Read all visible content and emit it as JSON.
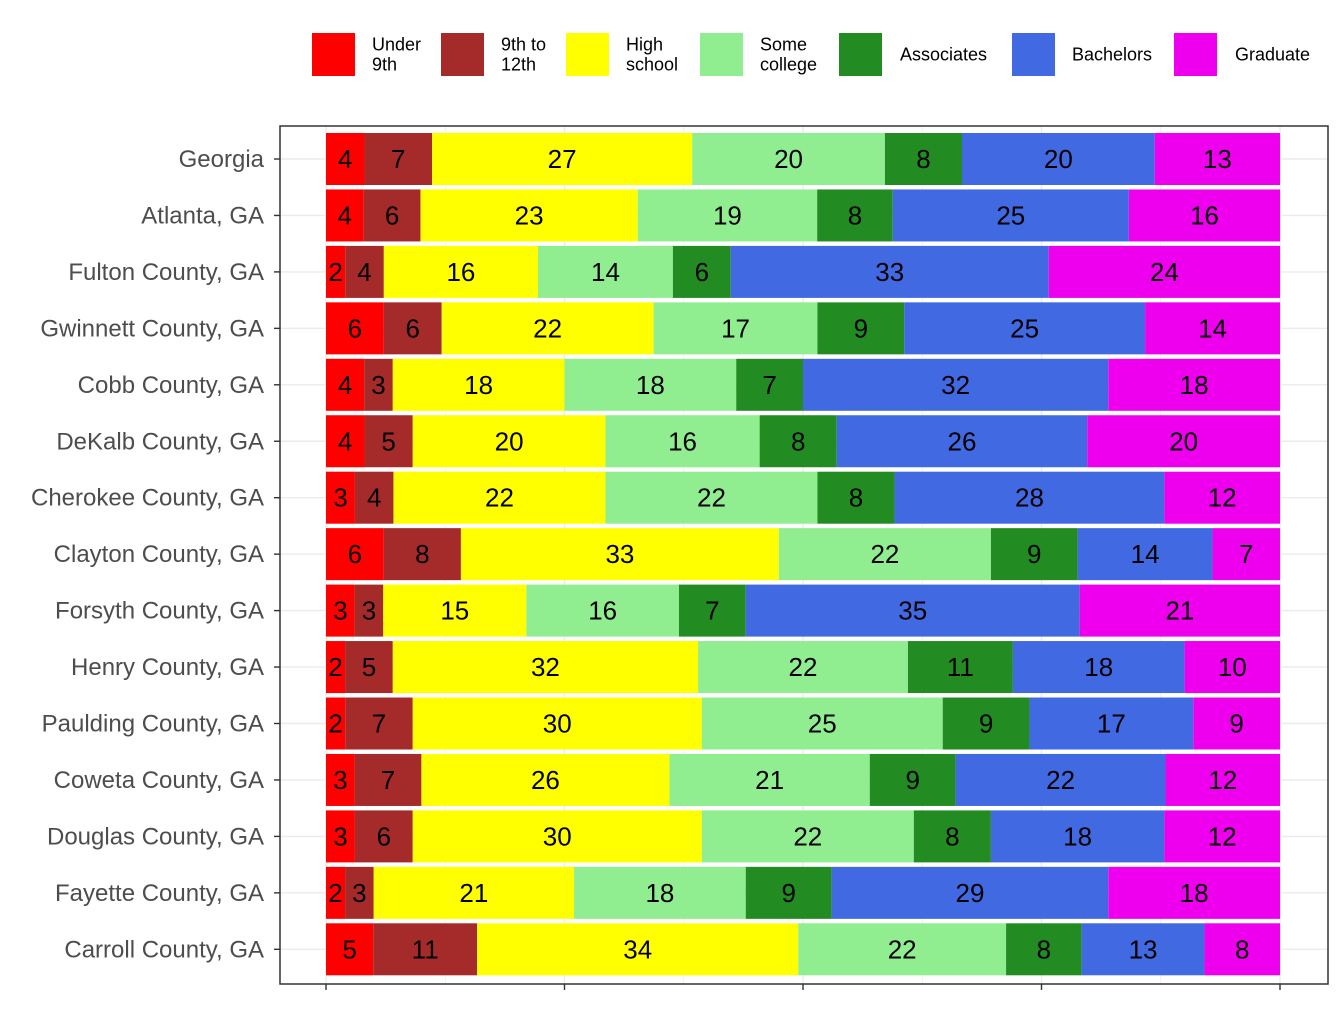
{
  "chart_data": {
    "type": "bar",
    "orientation": "horizontal",
    "stacked": true,
    "normalized_to_percent": true,
    "title": "",
    "xlabel": "",
    "ylabel": "",
    "xlim": [
      0,
      100
    ],
    "grid": true,
    "legend_position": "top",
    "categories": [
      "Georgia",
      "Atlanta, GA",
      "Fulton County, GA",
      "Gwinnett County, GA",
      "Cobb County, GA",
      "DeKalb County, GA",
      "Cherokee County, GA",
      "Clayton County, GA",
      "Forsyth County, GA",
      "Henry County, GA",
      "Paulding County, GA",
      "Coweta County, GA",
      "Douglas County, GA",
      "Fayette County, GA",
      "Carroll County, GA"
    ],
    "series": [
      {
        "name": "Under 9th",
        "legend_lines": [
          "Under",
          "9th"
        ],
        "color": "#FF0000",
        "values": [
          4,
          4,
          2,
          6,
          4,
          4,
          3,
          6,
          3,
          2,
          2,
          3,
          3,
          2,
          5
        ]
      },
      {
        "name": "9th to 12th",
        "legend_lines": [
          "9th to",
          "12th"
        ],
        "color": "#A52A2A",
        "values": [
          7,
          6,
          4,
          6,
          3,
          5,
          4,
          8,
          3,
          5,
          7,
          7,
          6,
          3,
          11
        ]
      },
      {
        "name": "High school",
        "legend_lines": [
          "High",
          "school"
        ],
        "color": "#FFFF00",
        "values": [
          27,
          23,
          16,
          22,
          18,
          20,
          22,
          33,
          15,
          32,
          30,
          26,
          30,
          21,
          34
        ]
      },
      {
        "name": "Some college",
        "legend_lines": [
          "Some",
          "college"
        ],
        "color": "#90EE90",
        "values": [
          20,
          19,
          14,
          17,
          18,
          16,
          22,
          22,
          16,
          22,
          25,
          21,
          22,
          18,
          22
        ]
      },
      {
        "name": "Associates",
        "legend_lines": [
          "Associates"
        ],
        "color": "#228B22",
        "values": [
          8,
          8,
          6,
          9,
          7,
          8,
          8,
          9,
          7,
          11,
          9,
          9,
          8,
          9,
          8
        ]
      },
      {
        "name": "Bachelors",
        "legend_lines": [
          "Bachelors"
        ],
        "color": "#4169E1",
        "values": [
          20,
          25,
          33,
          25,
          32,
          26,
          28,
          14,
          35,
          18,
          17,
          22,
          18,
          29,
          13
        ]
      },
      {
        "name": "Graduate",
        "legend_lines": [
          "Graduate"
        ],
        "color": "#EE00EE",
        "values": [
          13,
          16,
          24,
          14,
          18,
          20,
          12,
          7,
          21,
          10,
          9,
          12,
          12,
          18,
          8
        ]
      }
    ]
  }
}
